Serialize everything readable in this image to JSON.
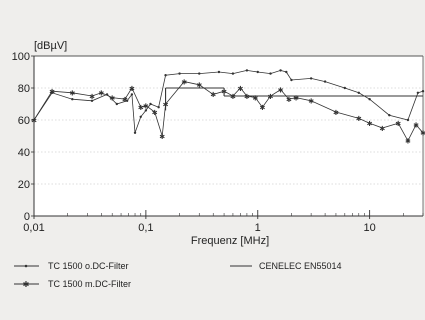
{
  "chart_data": {
    "type": "line",
    "x_scale": "log",
    "xlabel": "Frequenz [MHz]",
    "ylabel": "[dBµV]",
    "xlim": [
      0.01,
      30
    ],
    "ylim": [
      0,
      100
    ],
    "x_ticks": [
      {
        "value": 0.01,
        "label": "0,01"
      },
      {
        "value": 0.1,
        "label": "0,1"
      },
      {
        "value": 1,
        "label": "1"
      },
      {
        "value": 10,
        "label": "10"
      }
    ],
    "y_ticks": [
      0,
      20,
      40,
      60,
      80,
      100
    ],
    "grid": "horizontal",
    "series": [
      {
        "name": "TC 1500 o.DC-Filter",
        "marker": "dot",
        "color": "#333333",
        "x": [
          0.01,
          0.0145,
          0.022,
          0.033,
          0.045,
          0.055,
          0.068,
          0.075,
          0.08,
          0.09,
          0.1,
          0.11,
          0.13,
          0.15,
          0.2,
          0.3,
          0.45,
          0.6,
          0.8,
          1.0,
          1.3,
          1.6,
          1.8,
          2.0,
          3.0,
          4.0,
          6.0,
          8.0,
          10.0,
          15.0,
          22.0,
          27.0,
          30.0
        ],
        "y": [
          60,
          77,
          73,
          72,
          76,
          70,
          72,
          76,
          52,
          62,
          66,
          70,
          68,
          88,
          89,
          89,
          90,
          89,
          91,
          90,
          89,
          91,
          90,
          85,
          86,
          84,
          80,
          77,
          73,
          63,
          60,
          77,
          78
        ]
      },
      {
        "name": "TC 1500 m.DC-Filter",
        "marker": "star",
        "color": "#333333",
        "x": [
          0.01,
          0.0145,
          0.022,
          0.033,
          0.04,
          0.05,
          0.065,
          0.075,
          0.09,
          0.1,
          0.12,
          0.14,
          0.15,
          0.22,
          0.3,
          0.4,
          0.5,
          0.6,
          0.7,
          0.8,
          0.95,
          1.1,
          1.3,
          1.6,
          1.9,
          2.2,
          3.0,
          5.0,
          8.0,
          10.0,
          13.0,
          18.0,
          22.0,
          26.0,
          30.0
        ],
        "y": [
          60,
          78,
          77,
          75,
          77,
          74,
          73,
          80,
          68,
          69,
          65,
          50,
          70,
          84,
          82,
          76,
          78,
          75,
          80,
          75,
          74,
          68,
          75,
          79,
          73,
          74,
          72,
          65,
          61,
          58,
          55,
          58,
          47,
          57,
          52
        ]
      }
    ],
    "limit_line": {
      "name": "CENELEC EN55014",
      "segments": [
        {
          "x": [
            0.15,
            0.5
          ],
          "y": [
            80,
            80
          ]
        },
        {
          "x": [
            0.5,
            30
          ],
          "y": [
            75,
            75
          ]
        }
      ],
      "steps": [
        {
          "x": 0.15,
          "y": [
            66,
            80
          ]
        },
        {
          "x": 0.5,
          "y": [
            80,
            75
          ]
        }
      ]
    }
  }
}
